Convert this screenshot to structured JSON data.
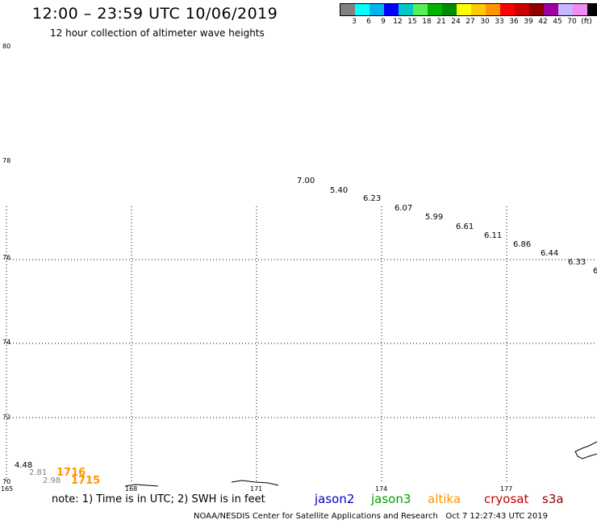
{
  "title": "12:00 – 23:59 UTC 10/06/2019",
  "subtitle": "12 hour collection of altimeter wave heights",
  "scale": {
    "colors": [
      "#808080",
      "#00ffff",
      "#00b4f0",
      "#0000ff",
      "#00c8c8",
      "#58f058",
      "#00b400",
      "#008c00",
      "#ffff00",
      "#ffc800",
      "#ff9600",
      "#ff0000",
      "#c80000",
      "#8c0000",
      "#a000a0",
      "#c8b4ff",
      "#f08cf0",
      "#000000"
    ],
    "labels": [
      "3",
      "6",
      "9",
      "12",
      "15",
      "18",
      "21",
      "24",
      "27",
      "30",
      "33",
      "36",
      "39",
      "42",
      "45",
      "70",
      "(ft)"
    ]
  },
  "lat_labels": [
    "80",
    "78",
    "76",
    "74",
    "72",
    "70"
  ],
  "lon_labels": [
    "165",
    "168",
    "171",
    "174",
    "177"
  ],
  "observations": [
    {
      "v": "7.00"
    },
    {
      "v": "5.40"
    },
    {
      "v": "6.23"
    },
    {
      "v": "6.07"
    },
    {
      "v": "5.99"
    },
    {
      "v": "6.61"
    },
    {
      "v": "6.11"
    },
    {
      "v": "6.86"
    },
    {
      "v": "6.44"
    },
    {
      "v": "6.33"
    },
    {
      "v": "6"
    },
    {
      "v": "4.48"
    },
    {
      "v": "2.81"
    },
    {
      "v": "2.98"
    }
  ],
  "times": [
    "1716",
    "1715"
  ],
  "note": "note: 1) Time is in UTC; 2) SWH is in feet",
  "satellites": [
    {
      "name": "jason2",
      "color": "#0000c8"
    },
    {
      "name": "jason3",
      "color": "#00a000"
    },
    {
      "name": "altika",
      "color": "#ff9600"
    },
    {
      "name": "cryosat",
      "color": "#c80000"
    },
    {
      "name": "s3a",
      "color": "#8c0000"
    }
  ],
  "credit_left": "NOAA/NESDIS Center for Satellite Applications and Research",
  "credit_right": "Oct  7 12:27:43 UTC 2019"
}
